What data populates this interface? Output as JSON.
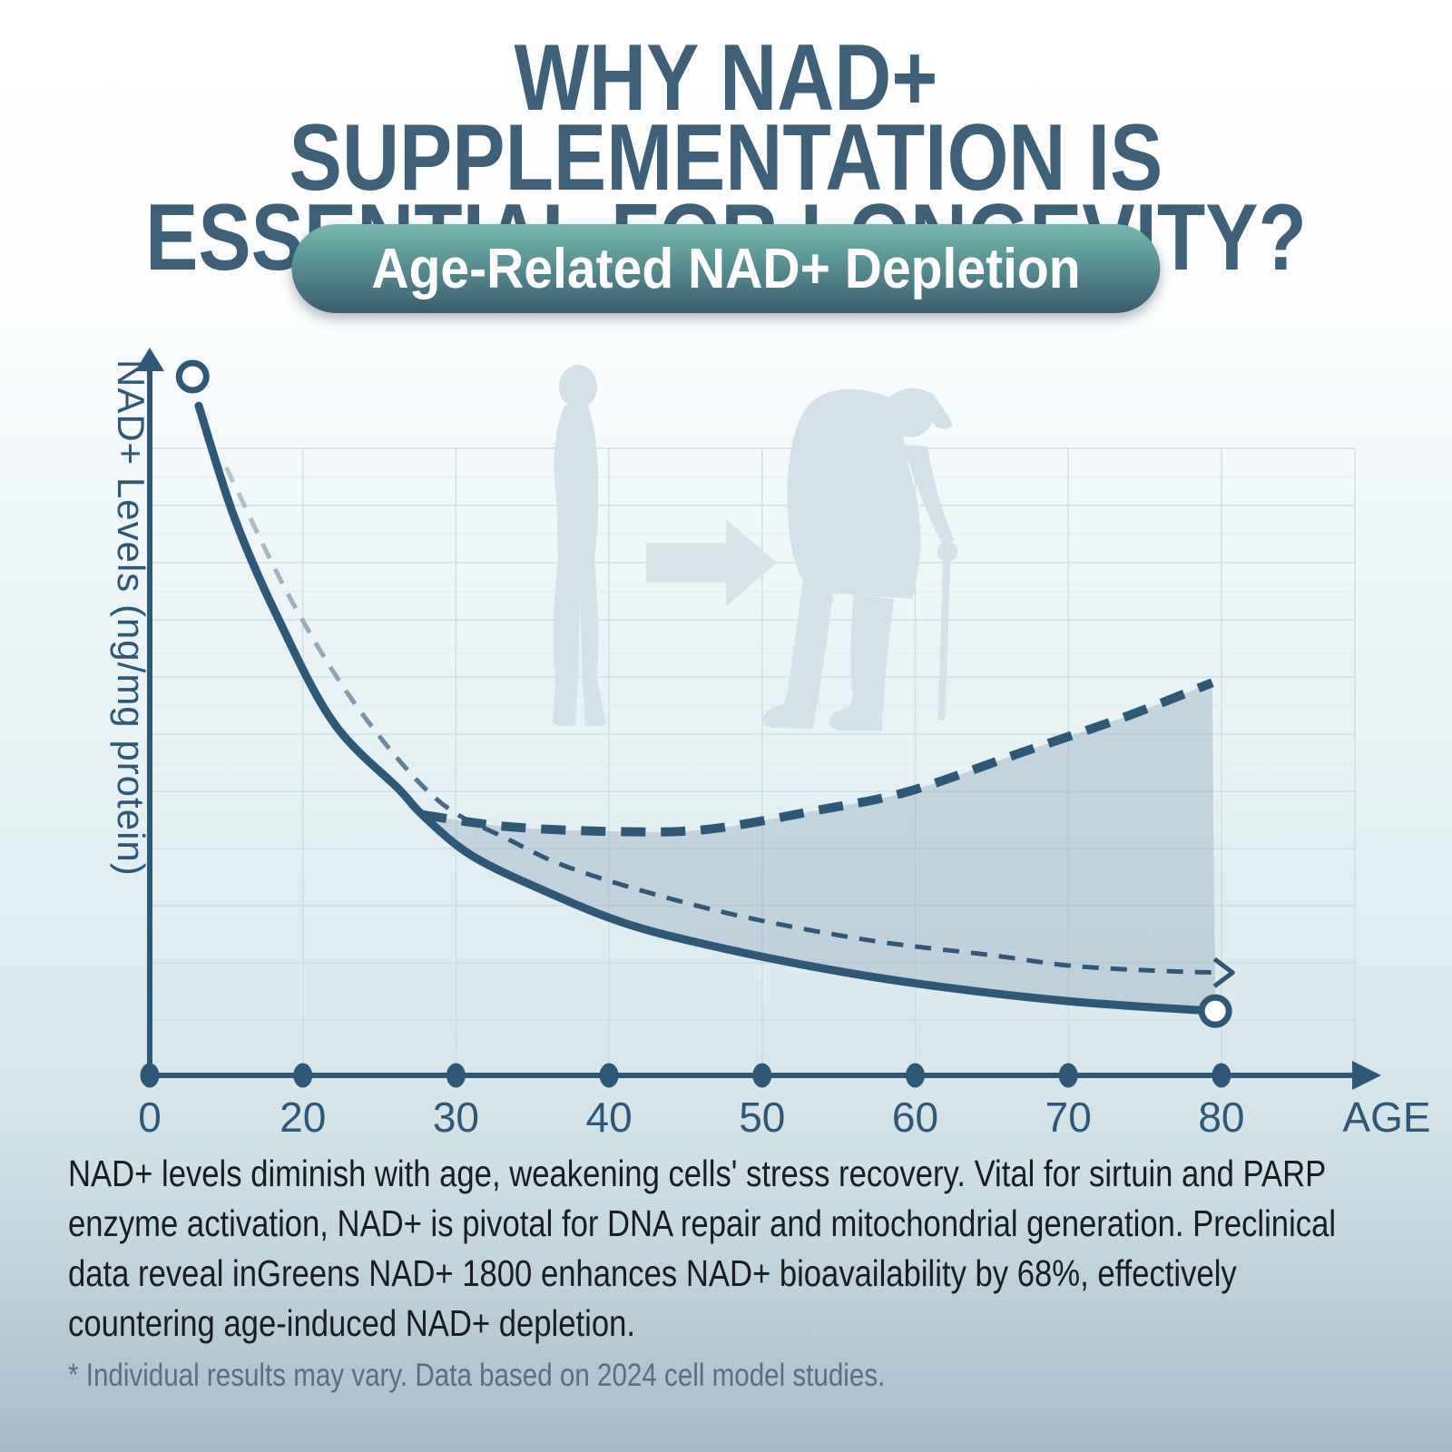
{
  "header": {
    "title_line1": "WHY NAD+ SUPPLEMENTATION IS",
    "title_line2": "ESSENTIAL FOR LONGEVITY?",
    "badge": "Age-Related NAD+ Depletion"
  },
  "body": {
    "description": "NAD+ levels diminish with age, weakening cells' stress recovery. Vital for sirtuin and PARP enzyme activation, NAD+ is pivotal for DNA repair and mitochondrial generation. Preclinical data reveal inGreens NAD+ 1800 enhances NAD+ bioavailability by 68%, effectively countering age-induced NAD+ depletion.",
    "footnote": "* Individual results may vary. Data based on 2024 cell model studies."
  },
  "colors": {
    "title": "#3e6179",
    "axis": "#2e5877",
    "curve": "#2e5877",
    "thin_dash_start": "#b9c6ce",
    "region_fill": "rgba(141,166,186,0.38)",
    "grid_major": "#c9dbe4",
    "grid_minor": "#dde9ef",
    "silhouette": "#d4e1e8",
    "arrow_silhouette": "#d9e3e8",
    "badge_top": "#79b7b0",
    "badge_bottom": "#3a5d6e",
    "text": "#191d1f",
    "footnote": "#5b6e7c"
  },
  "chart_data": {
    "type": "line",
    "title": "Age-Related NAD+ Depletion",
    "xlabel": "AGE",
    "ylabel": "NAD+ Levels (ng/mg protein)",
    "categories": [
      "0",
      "20",
      "30",
      "40",
      "50",
      "60",
      "70",
      "80"
    ],
    "ylim": [
      0,
      100
    ],
    "grid": true,
    "legend": "none",
    "series": [
      {
        "name": "natural-nad-decline",
        "style": "solid",
        "points": [
          [
            0.32,
            95.8
          ],
          [
            0.55,
            80.0
          ],
          [
            0.83,
            65.8
          ],
          [
            1.2,
            50.5
          ],
          [
            1.63,
            40.9
          ],
          [
            1.78,
            37.3
          ],
          [
            2.1,
            31.5
          ],
          [
            2.58,
            26.4
          ],
          [
            3.1,
            21.8
          ],
          [
            3.64,
            18.7
          ],
          [
            4.35,
            15.5
          ],
          [
            5.06,
            13.0
          ],
          [
            6.01,
            10.6
          ],
          [
            6.96,
            9.2
          ]
        ]
      },
      {
        "name": "continued-decline-projection",
        "style": "dashed-thin",
        "end_arrow": true,
        "points": [
          [
            0.5,
            87.0
          ],
          [
            0.92,
            68.2
          ],
          [
            1.36,
            52.6
          ],
          [
            1.87,
            39.6
          ],
          [
            2.34,
            33.8
          ],
          [
            2.81,
            29.2
          ],
          [
            3.7,
            23.6
          ],
          [
            4.65,
            19.5
          ],
          [
            5.5,
            17.2
          ],
          [
            6.01,
            15.7
          ],
          [
            6.55,
            15.0
          ],
          [
            6.99,
            14.7
          ]
        ]
      },
      {
        "name": "nad-supplementation-recovery",
        "style": "dashed-thick",
        "points": [
          [
            1.78,
            37.3
          ],
          [
            2.34,
            35.6
          ],
          [
            3.05,
            34.9
          ],
          [
            3.64,
            35.2
          ],
          [
            4.35,
            37.9
          ],
          [
            4.95,
            40.6
          ],
          [
            5.72,
            46.4
          ],
          [
            6.37,
            51.3
          ],
          [
            6.94,
            56.2
          ]
        ]
      }
    ],
    "markers": [
      {
        "series": "natural-nad-decline",
        "pos": [
          0.28,
          100
        ],
        "shape": "open-circle"
      },
      {
        "series": "natural-nad-decline",
        "pos": [
          6.96,
          9.2
        ],
        "shape": "open-circle"
      }
    ],
    "shaded_region": {
      "between": [
        "nad-supplementation-recovery",
        "natural-nad-decline"
      ],
      "from_idx": 1.78,
      "to_idx": 6.96
    }
  }
}
